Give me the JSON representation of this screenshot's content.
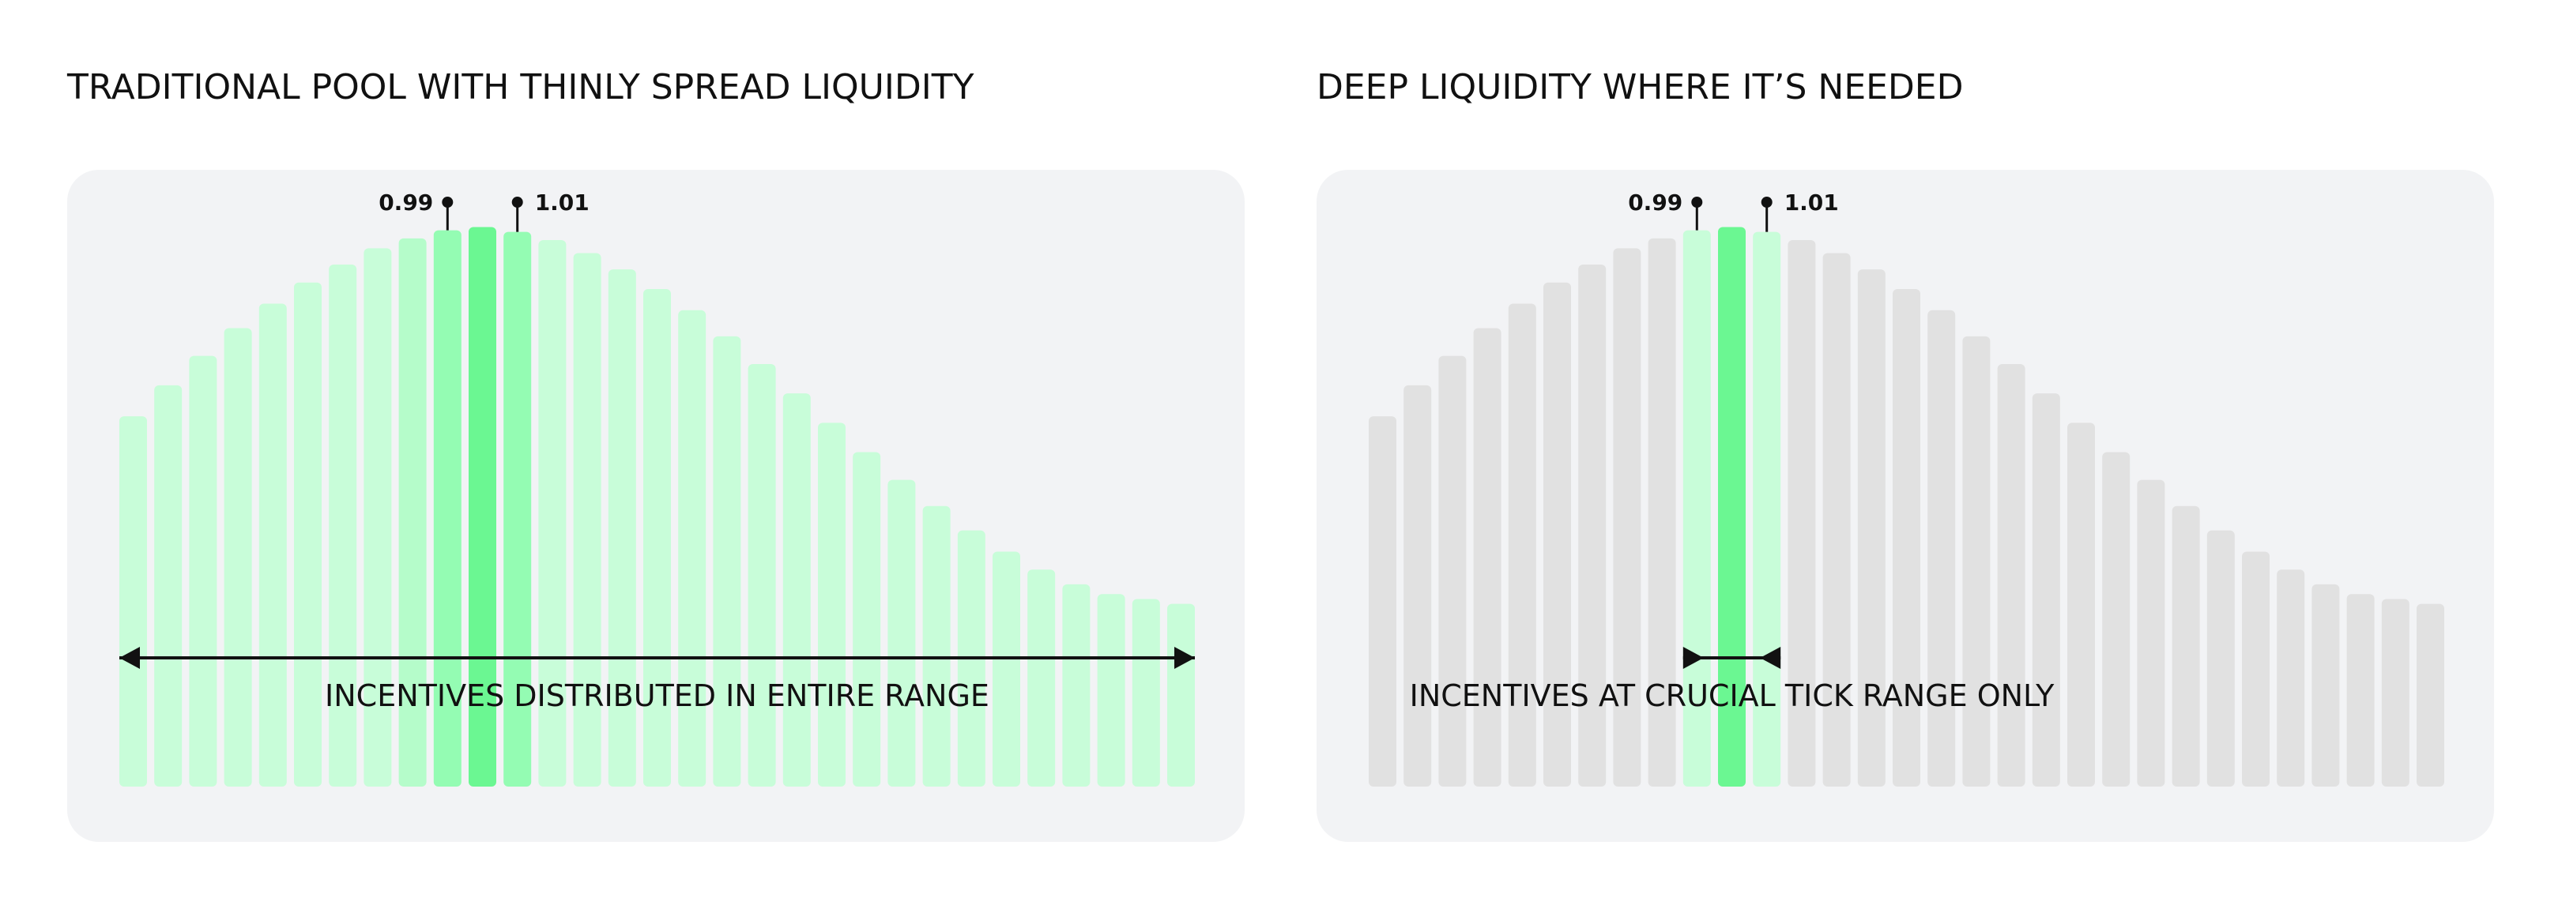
{
  "chart_data": [
    {
      "type": "bar",
      "title": "TRADITIONAL POOL WITH THINLY SPREAD LIQUIDITY",
      "annotation": "INCENTIVES DISTRIBUTED IN ENTIRE RANGE",
      "categories": [
        null,
        null,
        null,
        null,
        null,
        null,
        null,
        null,
        null,
        "0.99",
        null,
        "1.01",
        null,
        null,
        null,
        null,
        null,
        null,
        null,
        null,
        null,
        null,
        null,
        null,
        null,
        null,
        null,
        null,
        null,
        null,
        null
      ],
      "values": [
        227,
        246,
        264,
        281,
        296,
        309,
        320,
        330,
        336,
        341,
        343,
        340,
        335,
        327,
        317,
        305,
        292,
        276,
        259,
        241,
        223,
        205,
        188,
        172,
        157,
        144,
        133,
        124,
        118,
        115,
        112
      ],
      "colors": [
        "#c8fdd9",
        "#c8fdd9",
        "#c8fdd9",
        "#c8fdd9",
        "#c8fdd9",
        "#c8fdd9",
        "#c8fdd9",
        "#c8fdd9",
        "#b5fcca",
        "#94fcb3",
        "#6bf792",
        "#94fcb3",
        "#c8fdd9",
        "#c8fdd9",
        "#c8fdd9",
        "#c8fdd9",
        "#c8fdd9",
        "#c8fdd9",
        "#c8fdd9",
        "#c8fdd9",
        "#c8fdd9",
        "#c8fdd9",
        "#c8fdd9",
        "#c8fdd9",
        "#c8fdd9",
        "#c8fdd9",
        "#c8fdd9",
        "#c8fdd9",
        "#c8fdd9",
        "#c8fdd9",
        "#c8fdd9"
      ],
      "muted_color": "#e1e1e1",
      "ylim": [
        0,
        350
      ]
    },
    {
      "type": "bar",
      "title": "DEEP LIQUIDITY WHERE IT’S NEEDED",
      "annotation": "INCENTIVES AT CRUCIAL TICK RANGE ONLY",
      "categories": [
        null,
        null,
        null,
        null,
        null,
        null,
        null,
        null,
        null,
        "0.99",
        null,
        "1.01",
        null,
        null,
        null,
        null,
        null,
        null,
        null,
        null,
        null,
        null,
        null,
        null,
        null,
        null,
        null,
        null,
        null,
        null,
        null
      ],
      "values": [
        227,
        246,
        264,
        281,
        296,
        309,
        320,
        330,
        336,
        341,
        343,
        340,
        335,
        327,
        317,
        305,
        292,
        276,
        259,
        241,
        223,
        205,
        188,
        172,
        157,
        144,
        133,
        124,
        118,
        115,
        112
      ],
      "colors": [
        "#e1e1e1",
        "#e1e1e1",
        "#e1e1e1",
        "#e1e1e1",
        "#e1e1e1",
        "#e1e1e1",
        "#e1e1e1",
        "#e1e1e1",
        "#e1e1e1",
        "#c8fdd9",
        "#6bf792",
        "#c8fdd9",
        "#e1e1e1",
        "#e1e1e1",
        "#e1e1e1",
        "#e1e1e1",
        "#e1e1e1",
        "#e1e1e1",
        "#e1e1e1",
        "#e1e1e1",
        "#e1e1e1",
        "#e1e1e1",
        "#e1e1e1",
        "#e1e1e1",
        "#e1e1e1",
        "#e1e1e1",
        "#e1e1e1",
        "#e1e1e1",
        "#e1e1e1",
        "#e1e1e1",
        "#e1e1e1"
      ],
      "muted_color": "#e1e1e1",
      "ylim": [
        0,
        350
      ]
    }
  ]
}
